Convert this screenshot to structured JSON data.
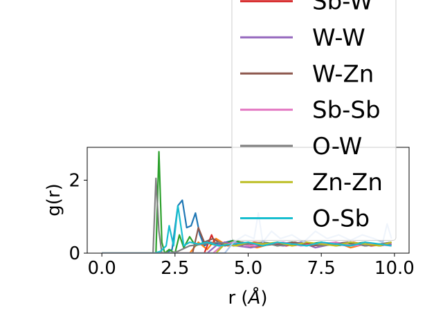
{
  "chart_data": {
    "type": "line",
    "xlabel": "r ($\\AA$)",
    "ylabel": "g(r)",
    "xlim": [
      -0.5,
      10.5
    ],
    "ylim": [
      0,
      2.9
    ],
    "xticks": [
      0.0,
      2.5,
      5.0,
      7.5,
      10.0
    ],
    "xtick_labels": [
      "0.0",
      "2.5",
      "5.0",
      "7.5",
      "10.0"
    ],
    "yticks": [
      0,
      2
    ],
    "ytick_labels": [
      "0",
      "2"
    ],
    "grid": false,
    "legend_position": "upper-right, extending above plot area (partially cut off)",
    "series": [
      {
        "name": "",
        "color": "#1f77b4",
        "x": [
          0.0,
          1.8,
          2.0,
          2.2,
          2.4,
          2.6,
          2.75,
          2.9,
          3.05,
          3.2,
          3.35,
          3.5,
          3.7,
          4.0,
          4.5,
          5.0,
          5.5,
          6.0,
          6.5,
          7.0,
          7.5,
          8.0,
          8.5,
          9.0,
          9.5,
          9.9
        ],
        "y": [
          0.0,
          0.0,
          0.0,
          0.0,
          0.1,
          1.3,
          1.45,
          0.7,
          0.75,
          1.1,
          0.5,
          0.2,
          0.3,
          0.25,
          0.35,
          0.2,
          0.3,
          0.25,
          0.3,
          0.2,
          0.3,
          0.25,
          0.3,
          0.2,
          0.25,
          0.3
        ]
      },
      {
        "name": "",
        "color": "#ff7f0e",
        "x": [
          0.0,
          3.0,
          3.3,
          3.6,
          3.9,
          4.3,
          4.8,
          5.3,
          6.0,
          6.5,
          7.0,
          7.5,
          8.0,
          8.5,
          9.0,
          9.5,
          9.9
        ],
        "y": [
          0.0,
          0.0,
          0.3,
          0.1,
          0.4,
          0.2,
          0.25,
          0.15,
          0.3,
          0.2,
          0.25,
          0.2,
          0.3,
          0.15,
          0.25,
          0.2,
          0.3
        ]
      },
      {
        "name": "",
        "color": "#2ca02c",
        "x": [
          0.0,
          1.85,
          1.95,
          2.05,
          2.15,
          2.3,
          2.5,
          2.65,
          2.8,
          3.0,
          3.2,
          3.5,
          4.0,
          4.5,
          5.0,
          5.5,
          6.0,
          6.5,
          7.0,
          7.5,
          8.0,
          8.5,
          9.0,
          9.5,
          9.9
        ],
        "y": [
          0.0,
          0.0,
          2.78,
          0.3,
          0.0,
          0.1,
          0.0,
          0.5,
          0.15,
          0.45,
          0.2,
          0.3,
          0.2,
          0.35,
          0.25,
          0.3,
          0.2,
          0.3,
          0.25,
          0.3,
          0.2,
          0.25,
          0.3,
          0.2,
          0.25
        ]
      },
      {
        "name": "Sb-W",
        "color": "#d62728",
        "x": [
          0.0,
          3.5,
          3.75,
          3.9,
          4.2,
          4.7,
          5.2,
          5.8,
          6.3,
          6.9,
          7.4,
          8.0,
          8.6,
          9.2,
          9.9
        ],
        "y": [
          0.0,
          0.0,
          0.5,
          0.2,
          0.3,
          0.2,
          0.3,
          0.25,
          0.2,
          0.3,
          0.2,
          0.25,
          0.3,
          0.2,
          0.25
        ]
      },
      {
        "name": "W-W",
        "color": "#9467bd",
        "x": [
          0.0,
          3.6,
          3.9,
          4.2,
          4.6,
          5.1,
          5.7,
          6.2,
          6.8,
          7.3,
          7.9,
          8.4,
          9.0,
          9.5,
          9.9
        ],
        "y": [
          0.0,
          0.0,
          0.2,
          0.3,
          0.2,
          0.15,
          0.25,
          0.2,
          0.3,
          0.15,
          0.25,
          0.2,
          0.3,
          0.2,
          0.25
        ]
      },
      {
        "name": "W-Zn",
        "color": "#8c564b",
        "x": [
          0.0,
          3.1,
          3.3,
          3.5,
          3.8,
          4.2,
          4.8,
          5.4,
          6.0,
          6.6,
          7.2,
          7.8,
          8.4,
          9.0,
          9.5,
          9.9
        ],
        "y": [
          0.0,
          0.0,
          0.7,
          0.3,
          0.4,
          0.2,
          0.3,
          0.2,
          0.25,
          0.3,
          0.2,
          0.25,
          0.3,
          0.2,
          0.25,
          0.2
        ]
      },
      {
        "name": "Sb-Sb",
        "color": "#e377c2",
        "x": [
          0.0,
          3.8,
          4.1,
          4.5,
          5.0,
          5.6,
          6.2,
          6.8,
          7.4,
          8.0,
          8.6,
          9.2,
          9.9
        ],
        "y": [
          0.0,
          0.0,
          0.2,
          0.3,
          0.2,
          0.25,
          0.3,
          0.2,
          0.25,
          0.3,
          0.2,
          0.25,
          0.2
        ]
      },
      {
        "name": "O-W",
        "color": "#7f7f7f",
        "x": [
          0.0,
          1.75,
          1.85,
          1.95,
          2.05,
          2.3,
          2.6,
          3.0,
          3.5,
          4.0,
          4.5,
          5.0,
          5.5,
          6.0,
          6.5,
          7.0,
          7.5,
          8.0,
          8.5,
          9.0,
          9.5,
          9.9
        ],
        "y": [
          0.0,
          0.0,
          2.05,
          0.6,
          0.0,
          0.0,
          0.05,
          0.2,
          0.25,
          0.3,
          0.2,
          0.25,
          0.3,
          0.2,
          0.25,
          0.3,
          0.2,
          0.25,
          0.3,
          0.2,
          0.25,
          0.3
        ]
      },
      {
        "name": "Zn-Zn",
        "color": "#bcbd22",
        "x": [
          0.0,
          3.9,
          4.2,
          4.6,
          5.0,
          5.5,
          6.0,
          6.5,
          7.0,
          7.5,
          8.0,
          8.5,
          9.0,
          9.5,
          9.9
        ],
        "y": [
          0.0,
          0.0,
          0.25,
          0.2,
          0.3,
          0.25,
          0.3,
          0.2,
          0.3,
          0.25,
          0.2,
          0.3,
          0.25,
          0.2,
          0.3
        ]
      },
      {
        "name": "O-Sb",
        "color": "#17becf",
        "x": [
          0.0,
          1.8,
          2.0,
          2.2,
          2.3,
          2.45,
          2.6,
          2.8,
          3.0,
          3.3,
          3.6,
          4.0,
          4.5,
          5.0,
          5.5,
          6.0,
          6.5,
          7.0,
          7.5,
          8.0,
          8.5,
          9.0,
          9.5,
          9.9
        ],
        "y": [
          0.0,
          0.0,
          0.05,
          0.2,
          0.75,
          0.2,
          1.3,
          0.2,
          0.3,
          0.25,
          0.3,
          0.2,
          0.25,
          0.3,
          0.2,
          0.3,
          0.25,
          0.2,
          0.3,
          0.25,
          0.2,
          0.3,
          0.25,
          0.2
        ]
      },
      {
        "name": "",
        "color": "#aec7e8",
        "x": [
          0.0,
          4.2,
          4.5,
          4.9,
          5.2,
          5.35,
          5.5,
          5.8,
          6.1,
          6.5,
          6.9,
          7.3,
          7.7,
          8.1,
          8.5,
          8.9,
          9.3,
          9.6,
          9.75,
          9.9
        ],
        "y": [
          0.0,
          0.0,
          0.3,
          0.5,
          0.4,
          1.1,
          0.3,
          0.6,
          0.4,
          0.5,
          0.3,
          0.6,
          0.4,
          0.5,
          0.35,
          0.5,
          0.4,
          0.3,
          0.8,
          0.4
        ]
      }
    ]
  }
}
